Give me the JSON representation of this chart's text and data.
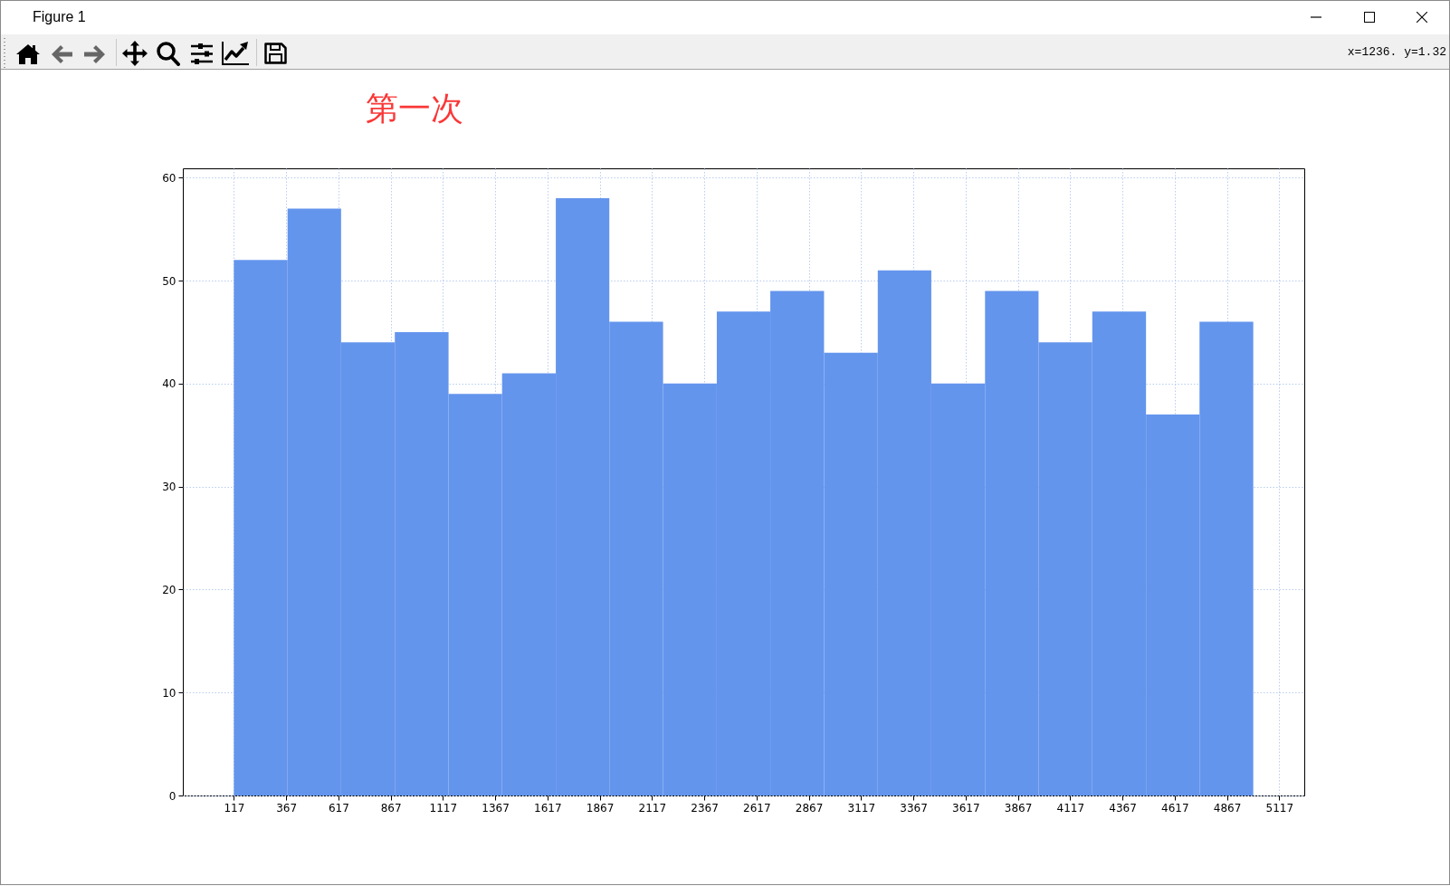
{
  "chart_data": {
    "type": "histogram",
    "title": "第一次",
    "bins": [
      117,
      374,
      630,
      887,
      1144,
      1400,
      1657,
      1913,
      2170,
      2427,
      2683,
      2940,
      3197,
      3453,
      3710,
      3966,
      4223,
      4480,
      4736,
      4993
    ],
    "values": [
      52,
      57,
      44,
      45,
      39,
      41,
      58,
      46,
      40,
      47,
      49,
      43,
      51,
      40,
      49,
      44,
      47,
      37,
      46
    ],
    "color": "#6495ed",
    "xlim": [
      -127,
      5237
    ],
    "ylim": [
      0,
      60.9
    ],
    "xticks": [
      117,
      367,
      617,
      867,
      1117,
      1367,
      1617,
      1867,
      2117,
      2367,
      2617,
      2867,
      3117,
      3367,
      3617,
      3867,
      4117,
      4367,
      4617,
      4867,
      5117
    ],
    "yticks": [
      0,
      10,
      20,
      30,
      40,
      50,
      60
    ],
    "grid": true,
    "annotations": [
      "Figure 1",
      "x=1236. y=1.32"
    ]
  }
}
